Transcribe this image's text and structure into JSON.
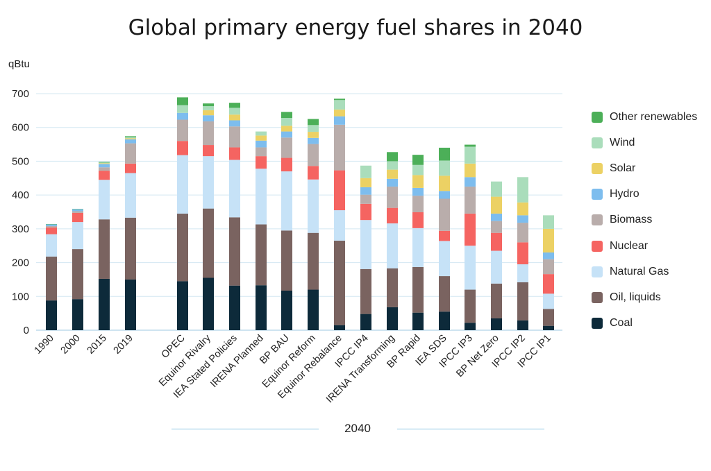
{
  "chart_data": {
    "type": "bar",
    "stacked": true,
    "title": "Global primary energy fuel shares in 2040",
    "ylabel": "qBtu",
    "ylim": [
      0,
      700
    ],
    "yticks": [
      0,
      100,
      200,
      300,
      400,
      500,
      600,
      700
    ],
    "grid": true,
    "legend_position": "right",
    "group_label": "2040",
    "categories": [
      "1990",
      "2000",
      "2015",
      "2019",
      "OPEC",
      "Equinor Rivalry",
      "IEA Stated Policies",
      "IRENA Planned",
      "BP BAU",
      "Equinor Reform",
      "Equinor Rebalance",
      "IPCC IP4",
      "IRENA Transforming",
      "BP Rapid",
      "IEA SDS",
      "IPCC IP3",
      "BP Net Zero",
      "IPCC IP2",
      "IPCC IP1"
    ],
    "series": [
      {
        "name": "Coal",
        "color": "#0d2a3a",
        "values": [
          88,
          92,
          152,
          150,
          145,
          155,
          132,
          133,
          117,
          120,
          15,
          48,
          68,
          52,
          55,
          22,
          35,
          29,
          13
        ]
      },
      {
        "name": "Oil, liquids",
        "color": "#7a6360",
        "values": [
          130,
          148,
          176,
          183,
          200,
          205,
          202,
          180,
          178,
          168,
          250,
          133,
          115,
          135,
          105,
          98,
          103,
          113,
          50
        ]
      },
      {
        "name": "Natural Gas",
        "color": "#c6e2f7",
        "values": [
          66,
          80,
          117,
          132,
          173,
          155,
          170,
          165,
          175,
          158,
          90,
          145,
          133,
          115,
          104,
          130,
          97,
          53,
          45
        ]
      },
      {
        "name": "Nuclear",
        "color": "#f56461",
        "values": [
          20,
          27,
          27,
          28,
          42,
          33,
          37,
          37,
          40,
          40,
          118,
          48,
          46,
          47,
          30,
          95,
          53,
          65,
          58
        ]
      },
      {
        "name": "Biomass",
        "color": "#b9adab",
        "values": [
          4,
          5,
          10,
          60,
          63,
          70,
          62,
          26,
          60,
          65,
          135,
          27,
          63,
          49,
          95,
          80,
          35,
          58,
          44
        ]
      },
      {
        "name": "Hydro",
        "color": "#7dbdee",
        "values": [
          5,
          6,
          10,
          12,
          20,
          18,
          18,
          20,
          18,
          18,
          25,
          22,
          23,
          23,
          23,
          28,
          22,
          22,
          20
        ]
      },
      {
        "name": "Solar",
        "color": "#ecd164",
        "values": [
          0,
          0,
          2,
          3,
          0,
          15,
          17,
          15,
          17,
          18,
          20,
          27,
          27,
          38,
          45,
          40,
          50,
          38,
          70
        ]
      },
      {
        "name": "Wind",
        "color": "#aaddbb",
        "values": [
          0,
          0,
          2,
          3,
          23,
          12,
          20,
          12,
          23,
          20,
          28,
          37,
          25,
          30,
          45,
          50,
          45,
          75,
          40
        ]
      },
      {
        "name": "Other renewables",
        "color": "#4caf58",
        "values": [
          1,
          1,
          2,
          3,
          23,
          8,
          15,
          0,
          18,
          18,
          4,
          0,
          27,
          30,
          38,
          6,
          0,
          0,
          0
        ]
      }
    ]
  },
  "legend_order": [
    "Other renewables",
    "Wind",
    "Solar",
    "Hydro",
    "Biomass",
    "Nuclear",
    "Natural Gas",
    "Oil, liquids",
    "Coal"
  ]
}
